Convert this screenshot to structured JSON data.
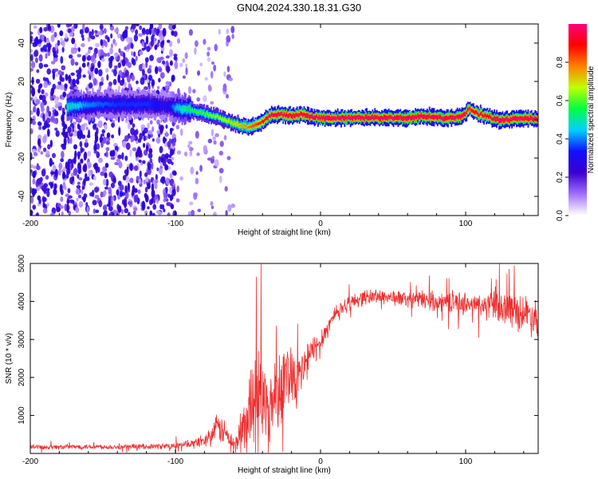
{
  "page": {
    "title": "GN04.2024.330.18.31.G30"
  },
  "chart_data": [
    {
      "type": "heatmap",
      "title": "GN04.2024.330.18.31.G30",
      "xlabel": "Height of straight line (km)",
      "ylabel": "Frequency (Hz)",
      "xlim": [
        -200,
        150
      ],
      "ylim": [
        -50,
        50
      ],
      "xticks": [
        -200,
        -100,
        0,
        100
      ],
      "yticks": [
        -40,
        -20,
        0,
        20,
        40
      ],
      "xtick_labels": [
        "-200",
        "-100",
        "0",
        "100"
      ],
      "ytick_labels": [
        "-40",
        "-20",
        "0",
        "20",
        "40"
      ],
      "colorbar": {
        "label": "Normalized spectral amplitude",
        "range": [
          0,
          1
        ],
        "ticks": [
          0,
          0.2,
          0.4,
          0.6,
          0.8
        ],
        "tick_labels": [
          "0.0",
          "0.2",
          "0.4",
          "0.6",
          "0.8"
        ],
        "colors": [
          "#ffffff",
          "#a070ff",
          "#3a00d0",
          "#1010ff",
          "#00d0ff",
          "#00ff40",
          "#c0ff00",
          "#ff8000",
          "#ff0000",
          "#ff0080"
        ]
      },
      "ridge": {
        "description": "dominant frequency track vs height",
        "x": [
          -175,
          -160,
          -140,
          -120,
          -105,
          -100,
          -90,
          -80,
          -70,
          -60,
          -50,
          -45,
          -40,
          -35,
          -30,
          -20,
          -15,
          -10,
          0,
          20,
          40,
          60,
          70,
          80,
          90,
          98,
          102,
          108,
          115,
          120,
          130,
          140,
          150
        ],
        "y": [
          7,
          8,
          8,
          8,
          7,
          6,
          5,
          3,
          1,
          -2,
          -4,
          -3,
          -1,
          2,
          3,
          2,
          3,
          2,
          1,
          1,
          1,
          1,
          2,
          1,
          1,
          2,
          6,
          3,
          2,
          0,
          0,
          1,
          0
        ],
        "peak_amplitude": [
          0.5,
          0.4,
          0.35,
          0.35,
          0.3,
          0.45,
          0.55,
          0.6,
          0.65,
          0.7,
          0.8,
          0.85,
          0.9,
          0.95,
          0.97,
          0.98,
          0.95,
          0.98,
          1.0,
          1.0,
          1.0,
          1.0,
          1.0,
          1.0,
          1.0,
          1.0,
          0.9,
          0.95,
          0.95,
          1.0,
          1.0,
          1.0,
          1.0
        ]
      },
      "noise_region": {
        "x_range": [
          -200,
          -60
        ],
        "dense_until": -100,
        "amplitude_range": [
          0.05,
          0.3
        ]
      }
    },
    {
      "type": "line",
      "xlabel": "Height of straight line (km)",
      "ylabel": "SNR (10 * v/v)",
      "xlim": [
        -200,
        150
      ],
      "ylim": [
        0,
        5000
      ],
      "xticks": [
        -200,
        -100,
        0,
        100
      ],
      "yticks": [
        1000,
        2000,
        3000,
        4000,
        5000
      ],
      "xtick_labels": [
        "-200",
        "-100",
        "0",
        "100"
      ],
      "ytick_labels": [
        "1000",
        "2000",
        "3000",
        "4000",
        "5000"
      ],
      "color": "#ee3030",
      "series": [
        {
          "x": [
            -200,
            -180,
            -160,
            -140,
            -120,
            -100,
            -90,
            -80,
            -75,
            -70,
            -65,
            -60,
            -55,
            -50,
            -45,
            -40,
            -35,
            -30,
            -25,
            -20,
            -15,
            -10,
            -5,
            0,
            5,
            10,
            15,
            20,
            25,
            30,
            40,
            50,
            60,
            70,
            80,
            90,
            100,
            110,
            120,
            130,
            140,
            150
          ],
          "values": [
            170,
            170,
            180,
            170,
            180,
            200,
            250,
            350,
            500,
            700,
            500,
            200,
            500,
            1000,
            1800,
            1400,
            1200,
            1700,
            2000,
            2200,
            1900,
            2400,
            2700,
            3000,
            3300,
            3700,
            3850,
            3950,
            4050,
            4100,
            4150,
            4100,
            4050,
            4050,
            4000,
            4000,
            3950,
            3900,
            3850,
            3800,
            3700,
            3600
          ],
          "noise_band": [
            80,
            80,
            80,
            80,
            80,
            100,
            120,
            200,
            300,
            500,
            400,
            300,
            800,
            1200,
            1500,
            1500,
            1200,
            1300,
            1200,
            1000,
            900,
            700,
            500,
            400,
            300,
            300,
            250,
            250,
            250,
            250,
            250,
            250,
            250,
            300,
            300,
            350,
            350,
            400,
            500,
            550,
            600,
            650
          ]
        }
      ]
    }
  ]
}
